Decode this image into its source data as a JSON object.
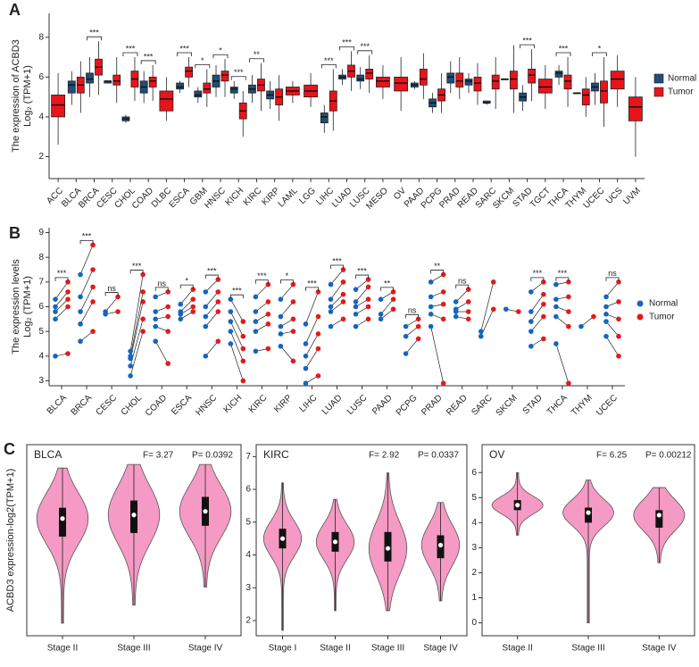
{
  "chart_data": [
    {
      "type": "box",
      "panel": "A",
      "y_label": [
        "The expression of ACBD3",
        "Log₂ (TPM+1)"
      ],
      "categories": [
        "ACC",
        "BLCA",
        "BRCA",
        "CESC",
        "CHOL",
        "COAD",
        "DLBC",
        "ESCA",
        "GBM",
        "HNSC",
        "KICH",
        "KIRC",
        "KIRP",
        "LAML",
        "LGG",
        "LIHC",
        "LUAD",
        "LUSC",
        "MESO",
        "OV",
        "PAAD",
        "PCPG",
        "PRAD",
        "READ",
        "SARC",
        "SKCM",
        "STAD",
        "TGCT",
        "THCA",
        "THYM",
        "UCEC",
        "UCS",
        "UVM"
      ],
      "ylim": [
        0.9,
        9.2
      ],
      "yticks": [
        2,
        4,
        6,
        8
      ],
      "series": [
        {
          "name": "Normal",
          "color": "#1f4e79",
          "boxes": [
            null,
            [
              4.6,
              5.2,
              5.6,
              5.8,
              6.3
            ],
            [
              5.0,
              5.7,
              5.9,
              6.2,
              7.0
            ],
            [
              5.7,
              5.7,
              5.8,
              5.8,
              5.8
            ],
            [
              3.7,
              3.8,
              3.9,
              4.0,
              4.1
            ],
            [
              4.7,
              5.2,
              5.5,
              5.8,
              6.3
            ],
            null,
            [
              5.2,
              5.4,
              5.5,
              5.7,
              5.8
            ],
            [
              4.7,
              5.0,
              5.1,
              5.3,
              5.5
            ],
            [
              5.0,
              5.5,
              5.8,
              6.1,
              6.6
            ],
            [
              4.9,
              5.2,
              5.4,
              5.5,
              5.8
            ],
            [
              4.7,
              5.2,
              5.4,
              5.6,
              6.1
            ],
            [
              4.4,
              4.9,
              5.1,
              5.3,
              5.8
            ],
            null,
            null,
            [
              3.2,
              3.7,
              4.0,
              4.2,
              4.6
            ],
            [
              5.6,
              5.9,
              6.0,
              6.1,
              6.4
            ],
            [
              5.4,
              5.8,
              5.9,
              6.1,
              6.5
            ],
            null,
            null,
            [
              5.4,
              5.5,
              5.6,
              5.7,
              5.8
            ],
            [
              4.2,
              4.5,
              4.7,
              4.9,
              5.2
            ],
            [
              5.2,
              5.7,
              6.0,
              6.2,
              6.8
            ],
            [
              5.2,
              5.6,
              5.8,
              5.9,
              6.2
            ],
            [
              4.6,
              4.7,
              4.7,
              4.8,
              4.8
            ],
            [
              5.9,
              5.9,
              5.9,
              5.9,
              5.9
            ],
            [
              4.3,
              4.8,
              5.0,
              5.2,
              5.6
            ],
            null,
            [
              5.6,
              6.0,
              6.2,
              6.3,
              6.6
            ],
            [
              5.2,
              5.2,
              5.2,
              5.2,
              5.2
            ],
            [
              4.6,
              5.3,
              5.5,
              5.7,
              6.2
            ],
            null,
            null
          ]
        },
        {
          "name": "Tumor",
          "color": "#e8141c",
          "boxes": [
            [
              2.6,
              4.0,
              4.6,
              5.1,
              6.2
            ],
            [
              4.2,
              5.2,
              5.6,
              6.0,
              6.8
            ],
            [
              5.1,
              6.1,
              6.5,
              6.9,
              7.8
            ],
            [
              4.7,
              5.6,
              5.8,
              6.1,
              7.0
            ],
            [
              4.8,
              5.5,
              5.9,
              6.3,
              7.0
            ],
            [
              4.8,
              5.5,
              5.8,
              6.0,
              6.6
            ],
            [
              3.8,
              4.3,
              4.9,
              5.3,
              6.0
            ],
            [
              5.5,
              6.0,
              6.3,
              6.5,
              7.0
            ],
            [
              4.5,
              5.2,
              5.4,
              5.7,
              6.4
            ],
            [
              5.0,
              5.8,
              6.1,
              6.3,
              6.9
            ],
            [
              3.0,
              3.9,
              4.3,
              4.7,
              5.3
            ],
            [
              4.3,
              5.3,
              5.6,
              5.9,
              6.7
            ],
            [
              3.8,
              4.6,
              5.0,
              5.4,
              6.1
            ],
            [
              4.7,
              5.1,
              5.3,
              5.5,
              5.8
            ],
            [
              4.5,
              5.0,
              5.3,
              5.6,
              6.2
            ],
            [
              3.3,
              4.3,
              4.8,
              5.3,
              6.4
            ],
            [
              5.3,
              6.0,
              6.3,
              6.6,
              7.3
            ],
            [
              5.2,
              5.9,
              6.2,
              6.4,
              7.1
            ],
            [
              4.9,
              5.5,
              5.8,
              6.0,
              6.6
            ],
            [
              4.3,
              5.3,
              5.7,
              6.0,
              7.0
            ],
            [
              4.9,
              5.6,
              5.9,
              6.4,
              7.2
            ],
            [
              4.2,
              4.8,
              5.1,
              5.4,
              6.2
            ],
            [
              4.9,
              5.5,
              5.8,
              6.2,
              7.0
            ],
            [
              4.6,
              5.3,
              5.7,
              6.0,
              6.7
            ],
            [
              4.4,
              5.4,
              5.8,
              6.1,
              7.0
            ],
            [
              4.2,
              5.4,
              5.9,
              6.3,
              7.6
            ],
            [
              4.8,
              5.7,
              6.1,
              6.4,
              7.4
            ],
            [
              4.4,
              5.2,
              5.5,
              5.9,
              6.6
            ],
            [
              4.5,
              5.4,
              5.8,
              6.1,
              7.0
            ],
            [
              4.0,
              4.6,
              5.1,
              5.4,
              6.0
            ],
            [
              3.5,
              4.7,
              5.3,
              5.8,
              7.0
            ],
            [
              4.5,
              5.4,
              5.9,
              6.3,
              7.1
            ],
            [
              2.0,
              3.8,
              4.5,
              5.0,
              6.0
            ]
          ]
        }
      ],
      "significance": [
        null,
        null,
        "***",
        null,
        "***",
        "***",
        null,
        "***",
        "*",
        "*",
        "***",
        "**",
        null,
        null,
        null,
        "***",
        "***",
        "***",
        null,
        null,
        null,
        null,
        null,
        null,
        null,
        null,
        "***",
        null,
        "***",
        null,
        "*",
        null,
        null
      ]
    },
    {
      "type": "paired",
      "panel": "B",
      "y_label": [
        "The expression levels",
        "Log₂ (TPM+1)"
      ],
      "categories": [
        "BLCA",
        "BRCA",
        "CESC",
        "CHOL",
        "COAD",
        "ESCA",
        "HNSC",
        "KICH",
        "KIRC",
        "KIRP",
        "LIHC",
        "LUAD",
        "LUSC",
        "PAAD",
        "PCPG",
        "PRAD",
        "READ",
        "SARC",
        "SKCM",
        "STAD",
        "THCA",
        "THYM",
        "UCEC"
      ],
      "ylim": [
        2.8,
        9.2
      ],
      "yticks": [
        3,
        4,
        5,
        6,
        7,
        8,
        9
      ],
      "series": [
        {
          "name": "Normal",
          "color": "#1565c0",
          "values": [
            [
              4.0,
              5.5,
              5.8,
              6.0,
              6.3
            ],
            [
              4.6,
              5.3,
              5.8,
              6.4,
              7.3
            ],
            [
              5.7,
              5.8
            ],
            [
              3.2,
              3.6,
              3.9,
              4.0,
              4.2
            ],
            [
              4.6,
              5.2,
              5.5,
              5.8,
              6.4
            ],
            [
              5.5,
              5.7,
              5.8,
              6.1
            ],
            [
              4.0,
              5.2,
              5.6,
              6.0,
              6.6
            ],
            [
              4.5,
              5.0,
              5.4,
              5.8,
              6.3
            ],
            [
              4.2,
              5.0,
              5.4,
              5.8,
              6.4
            ],
            [
              4.4,
              4.9,
              5.2,
              5.6,
              6.3
            ],
            [
              2.9,
              3.5,
              4.0,
              4.5,
              5.3
            ],
            [
              5.2,
              5.8,
              6.0,
              6.3,
              6.9
            ],
            [
              5.2,
              5.7,
              6.0,
              6.2,
              6.7
            ],
            [
              5.5,
              5.7,
              6.3
            ],
            [
              4.1,
              4.8,
              5.2
            ],
            [
              5.2,
              5.7,
              6.0,
              6.4,
              7.0
            ],
            [
              5.6,
              5.8,
              5.9,
              6.2
            ],
            [
              4.8,
              5.0
            ],
            [
              5.9
            ],
            [
              4.4,
              5.0,
              5.4,
              5.8,
              6.6
            ],
            [
              4.5,
              5.6,
              6.0,
              6.3,
              6.9
            ],
            [
              5.2
            ],
            [
              4.8,
              5.4,
              5.7,
              6.0,
              6.4
            ]
          ]
        },
        {
          "name": "Tumor",
          "color": "#e31a1c",
          "values": [
            [
              4.1,
              6.0,
              6.3,
              6.6,
              7.0
            ],
            [
              5.0,
              6.2,
              6.8,
              7.5,
              8.5
            ],
            [
              5.8,
              6.4
            ],
            [
              5.0,
              5.5,
              6.2,
              6.6,
              7.3
            ],
            [
              3.7,
              5.0,
              5.6,
              6.0,
              6.6
            ],
            [
              5.8,
              6.0,
              6.3,
              6.7
            ],
            [
              4.6,
              5.8,
              6.2,
              6.6,
              7.1
            ],
            [
              3.0,
              3.8,
              4.3,
              4.8,
              5.4
            ],
            [
              4.3,
              5.3,
              5.7,
              6.2,
              6.9
            ],
            [
              3.8,
              5.0,
              5.5,
              6.2,
              6.9
            ],
            [
              3.2,
              4.3,
              4.9,
              5.6,
              6.6
            ],
            [
              5.5,
              6.2,
              6.5,
              7.0,
              7.5
            ],
            [
              5.5,
              6.0,
              6.3,
              6.8,
              7.1
            ],
            [
              5.9,
              6.3,
              6.6
            ],
            [
              4.7,
              5.2,
              5.5
            ],
            [
              2.9,
              5.5,
              6.1,
              6.6,
              7.3
            ],
            [
              5.5,
              5.8,
              6.2,
              6.7
            ],
            [
              5.9,
              7.0
            ],
            [
              5.8
            ],
            [
              4.7,
              5.6,
              6.1,
              6.5,
              7.0
            ],
            [
              2.9,
              5.2,
              5.8,
              6.4,
              7.0
            ],
            [
              5.6
            ],
            [
              4.0,
              4.8,
              5.5,
              6.2,
              7.0
            ]
          ]
        }
      ],
      "significance": [
        "***",
        "***",
        "ns",
        "***",
        "ns",
        "*",
        "***",
        "***",
        "***",
        "*",
        "***",
        "***",
        "***",
        "**",
        "ns",
        "**",
        "ns",
        null,
        null,
        "***",
        "***",
        null,
        "ns"
      ]
    },
    {
      "type": "violin",
      "panel": "C",
      "title": "BLCA",
      "y_label": "ACBD3 expression-log2(TPM+1)",
      "annotations": [
        "F= 3.27",
        "P= 0.0392"
      ],
      "color": "#f59ac4",
      "categories": [
        "Stage II",
        "Stage III",
        "Stage IV"
      ],
      "ylim": [
        1.2,
        6.2
      ],
      "values": [
        [
          1.4,
          3.8,
          4.3,
          4.6,
          5.7
        ],
        [
          1.9,
          3.9,
          4.4,
          4.8,
          5.8
        ],
        [
          2.4,
          4.1,
          4.5,
          4.9,
          5.8
        ]
      ]
    },
    {
      "type": "violin",
      "title": "KIRC",
      "annotations": [
        "F= 2.92",
        "P= 0.0337"
      ],
      "color": "#f59ac4",
      "categories": [
        "Stage I",
        "Stage II",
        "Stage III",
        "Stage IV"
      ],
      "ylim": [
        1.7,
        7.2
      ],
      "yticks": [
        2,
        3,
        4,
        5,
        6,
        7
      ],
      "values": [
        [
          1.7,
          4.2,
          4.5,
          4.8,
          6.2
        ],
        [
          2.3,
          4.1,
          4.4,
          4.7,
          5.7
        ],
        [
          2.3,
          3.8,
          4.2,
          4.7,
          6.5
        ],
        [
          2.6,
          3.9,
          4.3,
          4.6,
          5.6
        ]
      ]
    },
    {
      "type": "violin",
      "title": "OV",
      "annotations": [
        "F= 6.25",
        "P= 0.00212"
      ],
      "color": "#f59ac4",
      "categories": [
        "Stage II",
        "Stage III",
        "Stage IV"
      ],
      "ylim": [
        -0.3,
        6.9
      ],
      "yticks": [
        0,
        1,
        2,
        3,
        4,
        5,
        6
      ],
      "values": [
        [
          3.5,
          4.5,
          4.7,
          4.9,
          6.0
        ],
        [
          0,
          4.0,
          4.4,
          4.6,
          5.7
        ],
        [
          2.4,
          3.8,
          4.3,
          4.5,
          5.4
        ]
      ]
    }
  ]
}
